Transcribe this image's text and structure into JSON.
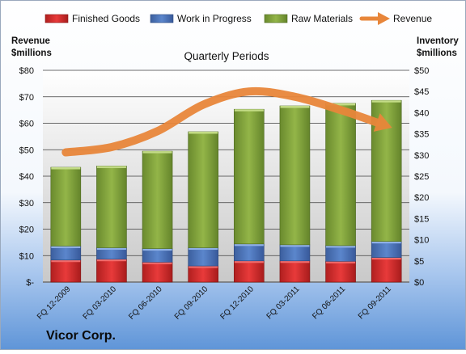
{
  "company": "Vicor Corp.",
  "colors": {
    "finished_goods": "#d42a2a",
    "work_in_progress": "#4a72b8",
    "raw_materials": "#7fa23a",
    "revenue": "#e8863a",
    "background_top": "#ffffff",
    "background_bottom": "#5f95d8"
  },
  "chart_data": {
    "type": "bar",
    "subtype": "stacked-bar-with-line",
    "title": "Quarterly Periods",
    "left_axis": {
      "label": "Revenue\n$millions",
      "ticks": [
        "$-",
        "$10",
        "$20",
        "$30",
        "$40",
        "$50",
        "$60",
        "$70",
        "$80"
      ],
      "range": [
        0,
        80
      ]
    },
    "right_axis": {
      "label": "Inventory\n$millions",
      "ticks": [
        "$0",
        "$5",
        "$10",
        "$15",
        "$20",
        "$25",
        "$30",
        "$35",
        "$40",
        "$45",
        "$50"
      ],
      "range": [
        0,
        50
      ]
    },
    "categories": [
      "FQ 12-2009",
      "FQ 03-2010",
      "FQ 06-2010",
      "FQ 09-2010",
      "FQ 12-2010",
      "FQ 03-2011",
      "FQ 06-2011",
      "FQ 09-2011"
    ],
    "series": [
      {
        "name": "Finished Goods",
        "axis": "right",
        "values": [
          5.2,
          5.4,
          4.7,
          3.8,
          5.0,
          5.0,
          4.9,
          5.8
        ]
      },
      {
        "name": "Work in Progress",
        "axis": "right",
        "values": [
          3.3,
          2.7,
          3.2,
          4.3,
          4.0,
          3.8,
          3.7,
          3.8
        ]
      },
      {
        "name": "Raw Materials",
        "axis": "right",
        "values": [
          18.6,
          19.3,
          23.0,
          27.4,
          31.8,
          32.8,
          33.6,
          33.3
        ]
      },
      {
        "name": "Revenue",
        "axis": "left",
        "type": "line",
        "values": [
          49,
          51,
          57,
          67,
          72,
          70,
          65,
          60
        ]
      }
    ],
    "grid": true,
    "legend_position": "top"
  }
}
